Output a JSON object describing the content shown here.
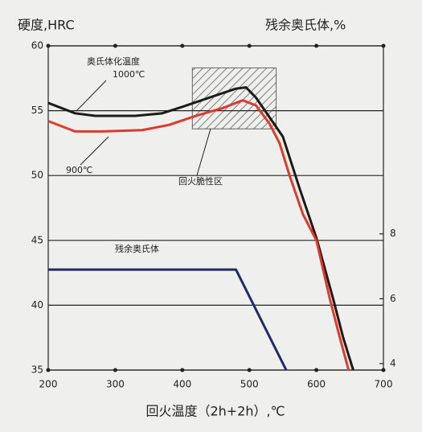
{
  "chart_data": {
    "type": "line",
    "y_label": "硬度,HRC",
    "y2_label": "残余奥氏体,%",
    "x_label": "回火温度（2h+2h）,℃",
    "xlim": [
      200,
      700
    ],
    "xticks": [
      200,
      300,
      400,
      500,
      600,
      700
    ],
    "ylim": [
      35,
      60
    ],
    "yticks": [
      35,
      40,
      45,
      50,
      55,
      60
    ],
    "y2lim": [
      3.8,
      13.8
    ],
    "y2ticks": [
      4,
      6,
      8
    ],
    "grid": true,
    "series": [
      {
        "name": "1000℃",
        "color": "#1b1b1b",
        "x": [
          200,
          240,
          270,
          330,
          370,
          400,
          440,
          480,
          495,
          510,
          530,
          550,
          575,
          600,
          625,
          640,
          655
        ],
        "values": [
          55.6,
          54.8,
          54.6,
          54.6,
          54.8,
          55.3,
          56.0,
          56.7,
          56.8,
          56.0,
          54.5,
          53.0,
          49.0,
          45.2,
          40.5,
          37.5,
          35.0
        ]
      },
      {
        "name": "900℃",
        "color": "#e03a2c",
        "x": [
          200,
          240,
          280,
          340,
          380,
          420,
          460,
          490,
          510,
          530,
          545,
          560,
          580,
          600,
          620,
          635,
          648
        ],
        "values": [
          54.2,
          53.4,
          53.4,
          53.5,
          53.9,
          54.6,
          55.2,
          55.8,
          55.4,
          54.0,
          52.5,
          50.0,
          47.0,
          45.0,
          40.5,
          37.5,
          35.0
        ]
      },
      {
        "name": "残余奥氏体",
        "color": "#1f2a6b",
        "axis": "y2",
        "x": [
          200,
          480,
          555
        ],
        "values": [
          6.9,
          6.9,
          3.8
        ]
      }
    ],
    "annotations": {
      "austenitizing": "奥氏体化温度",
      "brittle_zone": "回火脆性区"
    },
    "brittle_region": {
      "x": [
        415,
        540
      ],
      "y": [
        53.6,
        58.3
      ]
    }
  }
}
